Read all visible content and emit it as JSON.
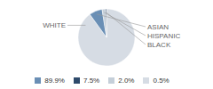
{
  "chart_data": {
    "type": "pie",
    "categories": [
      "WHITE",
      "ASIAN",
      "HISPANIC",
      "BLACK"
    ],
    "values": [
      89.9,
      7.5,
      2.0,
      0.5
    ],
    "value_labels": [
      "89.9%",
      "7.5%",
      "2.0%",
      "0.5%"
    ],
    "colors": [
      "#d6dce4",
      "#6a8fb5",
      "#c5cfd9",
      "#2e4a6b"
    ],
    "legend": "bottom"
  }
}
